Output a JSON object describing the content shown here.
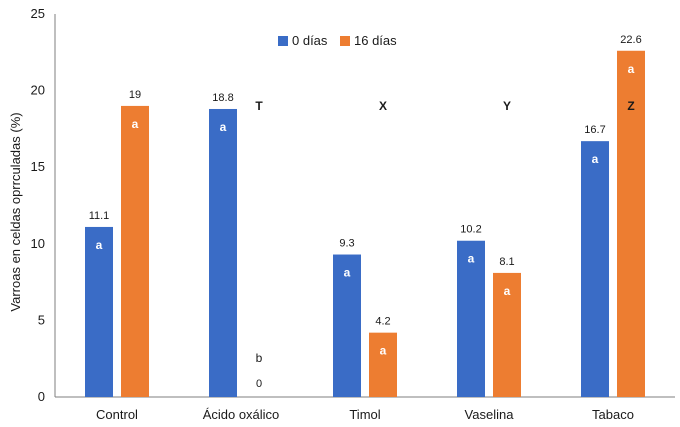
{
  "chart_data": {
    "type": "bar",
    "title": "",
    "xlabel": "",
    "ylabel": "Varroas en celdas oprrculadas (%)",
    "ylim": [
      0,
      25
    ],
    "yticks": [
      0,
      5,
      10,
      15,
      20,
      25
    ],
    "grid": false,
    "legend_position": "top-center",
    "categories": [
      "Control",
      "Ácido oxálico",
      "Timol",
      "Vaselina",
      "Tabaco"
    ],
    "series": [
      {
        "name": "0 días",
        "color": "#3A6CC6",
        "values": [
          11.1,
          18.8,
          9.3,
          10.2,
          16.7
        ],
        "labels": [
          "11.1",
          "18.8",
          "9.3",
          "10.2",
          "16.7"
        ],
        "sig": [
          "a",
          "a",
          "a",
          "a",
          "a"
        ]
      },
      {
        "name": "16 días",
        "color": "#ED7D31",
        "values": [
          19,
          0,
          4.2,
          8.1,
          22.6
        ],
        "labels": [
          "19",
          "0",
          "4.2",
          "8.1",
          "22.6"
        ],
        "sig": [
          "a",
          "b",
          "a",
          "a",
          "a"
        ]
      }
    ],
    "group_letters": [
      "",
      "T",
      "X",
      "Y",
      "Z"
    ]
  }
}
